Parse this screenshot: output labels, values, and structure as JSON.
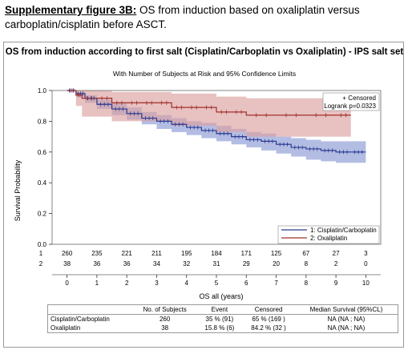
{
  "caption": {
    "label": "Supplementary figure 3B:",
    "text": " OS from induction based on oxaliplatin versus carboplatin/cisplatin before ASCT."
  },
  "chart_data": {
    "type": "line",
    "title": "OS from induction according to first salt (Cisplatin/Carboplatin vs Oxaliplatin) - IPS salt set",
    "subtitle": "With Number of Subjects at Risk and 95% Confidence Limits",
    "xlabel": "OS all (years)",
    "ylabel": "Survival Probability",
    "xlim": [
      -0.5,
      10.5
    ],
    "ylim": [
      0,
      1.0
    ],
    "x_ticks": [
      0,
      1,
      2,
      3,
      4,
      5,
      6,
      7,
      8,
      9,
      10
    ],
    "y_ticks": [
      "0.0",
      "0.2",
      "0.4",
      "0.6",
      "0.8",
      "1.0"
    ],
    "censored_label": "+ Censored",
    "logrank_label": "Logrank p=0.0323",
    "legend": [
      "1: Cisplatin/Carboplatin",
      "2: Oxaliplatin"
    ],
    "series": [
      {
        "name": "1: Cisplatin/Carboplatin",
        "color": "#2b3a8f",
        "band_color": "#8a9ad6",
        "x": [
          0,
          0.3,
          0.6,
          1.0,
          1.5,
          2.0,
          2.5,
          3.0,
          3.5,
          4.0,
          4.5,
          5.0,
          5.5,
          6.0,
          6.5,
          7.0,
          7.5,
          8.0,
          8.5,
          9.0,
          9.5,
          10.0
        ],
        "y": [
          1.0,
          0.98,
          0.95,
          0.91,
          0.88,
          0.85,
          0.82,
          0.8,
          0.78,
          0.76,
          0.74,
          0.72,
          0.7,
          0.68,
          0.67,
          0.65,
          0.63,
          0.62,
          0.61,
          0.6,
          0.6,
          0.6
        ],
        "lower": [
          1.0,
          0.96,
          0.92,
          0.88,
          0.84,
          0.81,
          0.78,
          0.75,
          0.73,
          0.71,
          0.69,
          0.67,
          0.65,
          0.63,
          0.61,
          0.59,
          0.57,
          0.55,
          0.54,
          0.53,
          0.53,
          0.53
        ],
        "upper": [
          1.0,
          0.99,
          0.97,
          0.94,
          0.92,
          0.89,
          0.86,
          0.84,
          0.82,
          0.8,
          0.79,
          0.77,
          0.75,
          0.73,
          0.72,
          0.7,
          0.69,
          0.68,
          0.67,
          0.67,
          0.67,
          0.67
        ]
      },
      {
        "name": "2: Oxaliplatin",
        "color": "#a0302a",
        "band_color": "#dca0a0",
        "x": [
          0,
          0.3,
          0.5,
          1.0,
          1.5,
          2.0,
          2.5,
          3.0,
          3.5,
          4.0,
          4.5,
          5.0,
          5.5,
          6.0,
          7.0,
          8.0,
          9.0,
          9.5
        ],
        "y": [
          1.0,
          0.97,
          0.95,
          0.95,
          0.92,
          0.92,
          0.92,
          0.92,
          0.89,
          0.89,
          0.89,
          0.86,
          0.86,
          0.84,
          0.84,
          0.84,
          0.84,
          0.84
        ],
        "lower": [
          1.0,
          0.9,
          0.83,
          0.83,
          0.8,
          0.8,
          0.8,
          0.8,
          0.77,
          0.77,
          0.77,
          0.73,
          0.73,
          0.7,
          0.7,
          0.7,
          0.7,
          0.7
        ],
        "upper": [
          1.0,
          1.0,
          1.0,
          1.0,
          0.99,
          0.99,
          0.99,
          0.99,
          0.98,
          0.98,
          0.98,
          0.96,
          0.96,
          0.95,
          0.95,
          0.95,
          0.95,
          0.95
        ]
      }
    ],
    "at_risk": {
      "rows": [
        {
          "label": "1",
          "values": [
            "260",
            "235",
            "221",
            "211",
            "195",
            "184",
            "171",
            "125",
            "67",
            "27",
            "3"
          ]
        },
        {
          "label": "2",
          "values": [
            "38",
            "36",
            "36",
            "34",
            "32",
            "31",
            "29",
            "20",
            "8",
            "2",
            "0"
          ]
        }
      ]
    }
  },
  "summary_table": {
    "headers": [
      "",
      "No. of Subjects",
      "Event",
      "Censored",
      "Median Survival (95%CL)"
    ],
    "rows": [
      [
        "Cisplatin/Carboplatin",
        "260",
        "35 % (91)",
        "65 % (169 )",
        "NA (NA ; NA)"
      ],
      [
        "Oxaliplatin",
        "38",
        "15.8 % (6)",
        "84.2 % (32 )",
        "NA (NA ; NA)"
      ]
    ]
  }
}
